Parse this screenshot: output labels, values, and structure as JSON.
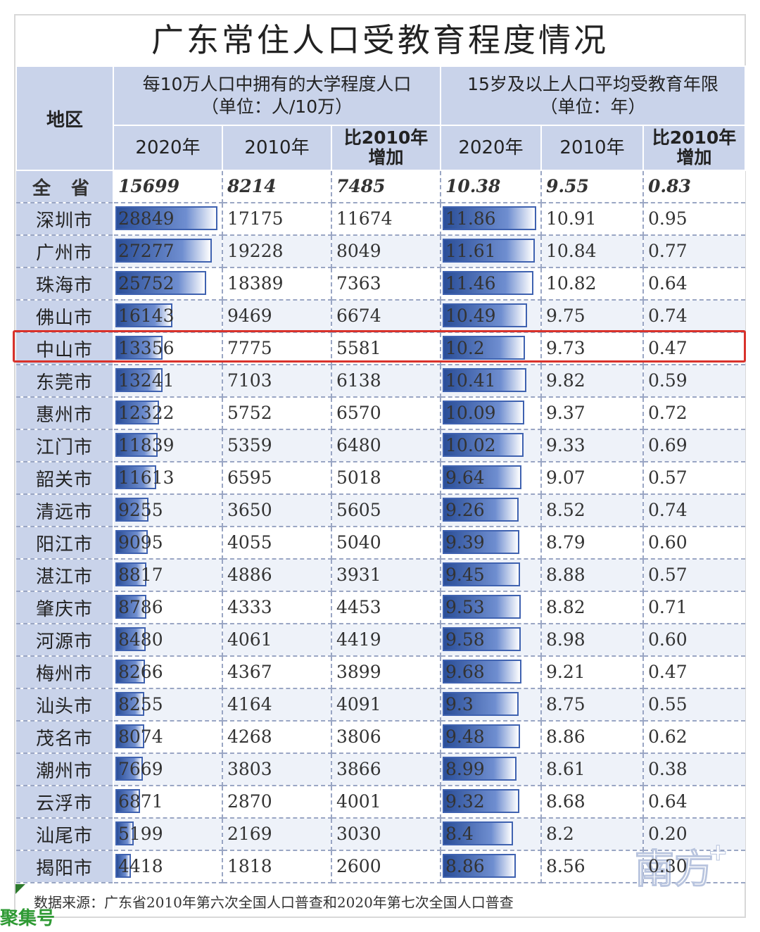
{
  "title": "广东常住人口受教育程度情况",
  "header": {
    "region": "地区",
    "group1": {
      "line1": "每10万人口中拥有的大学程度人口",
      "line2": "（单位：人/10万）"
    },
    "group2": {
      "line1": "15岁及以上人口平均受教育年限",
      "line2": "（单位：年）"
    },
    "y2020": "2020年",
    "y2010": "2010年",
    "inc_line1": "比2010年",
    "inc_line2": "增加"
  },
  "chart_data": {
    "type": "table",
    "title": "广东常住人口受教育程度情况",
    "columns": [
      "地区",
      "大学程度人口 2020年",
      "大学程度人口 2010年",
      "大学程度人口 比2010年增加",
      "平均受教育年限 2020年",
      "平均受教育年限 2010年",
      "平均受教育年限 比2010年增加"
    ],
    "total": {
      "region": "全 省",
      "uni2020": "15699",
      "uni2010": "8214",
      "uniInc": "7485",
      "edu2020": "10.38",
      "edu2010": "9.55",
      "eduInc": "0.83"
    },
    "rows": [
      {
        "region": "深圳市",
        "uni2020": "28849",
        "uni2010": "17175",
        "uniInc": "11674",
        "edu2020": "11.86",
        "edu2010": "10.91",
        "eduInc": "0.95"
      },
      {
        "region": "广州市",
        "uni2020": "27277",
        "uni2010": "19228",
        "uniInc": "8049",
        "edu2020": "11.61",
        "edu2010": "10.84",
        "eduInc": "0.77"
      },
      {
        "region": "珠海市",
        "uni2020": "25752",
        "uni2010": "18389",
        "uniInc": "7363",
        "edu2020": "11.46",
        "edu2010": "10.82",
        "eduInc": "0.64"
      },
      {
        "region": "佛山市",
        "uni2020": "16143",
        "uni2010": "9469",
        "uniInc": "6674",
        "edu2020": "10.49",
        "edu2010": "9.75",
        "eduInc": "0.74"
      },
      {
        "region": "中山市",
        "uni2020": "13356",
        "uni2010": "7775",
        "uniInc": "5581",
        "edu2020": "10.2",
        "edu2010": "9.73",
        "eduInc": "0.47"
      },
      {
        "region": "东莞市",
        "uni2020": "13241",
        "uni2010": "7103",
        "uniInc": "6138",
        "edu2020": "10.41",
        "edu2010": "9.82",
        "eduInc": "0.59"
      },
      {
        "region": "惠州市",
        "uni2020": "12322",
        "uni2010": "5752",
        "uniInc": "6570",
        "edu2020": "10.09",
        "edu2010": "9.37",
        "eduInc": "0.72"
      },
      {
        "region": "江门市",
        "uni2020": "11839",
        "uni2010": "5359",
        "uniInc": "6480",
        "edu2020": "10.02",
        "edu2010": "9.33",
        "eduInc": "0.69"
      },
      {
        "region": "韶关市",
        "uni2020": "11613",
        "uni2010": "6595",
        "uniInc": "5018",
        "edu2020": "9.64",
        "edu2010": "9.07",
        "eduInc": "0.57"
      },
      {
        "region": "清远市",
        "uni2020": "9255",
        "uni2010": "3650",
        "uniInc": "5605",
        "edu2020": "9.26",
        "edu2010": "8.52",
        "eduInc": "0.74"
      },
      {
        "region": "阳江市",
        "uni2020": "9095",
        "uni2010": "4055",
        "uniInc": "5040",
        "edu2020": "9.39",
        "edu2010": "8.79",
        "eduInc": "0.60"
      },
      {
        "region": "湛江市",
        "uni2020": "8817",
        "uni2010": "4886",
        "uniInc": "3931",
        "edu2020": "9.45",
        "edu2010": "8.88",
        "eduInc": "0.57"
      },
      {
        "region": "肇庆市",
        "uni2020": "8786",
        "uni2010": "4333",
        "uniInc": "4453",
        "edu2020": "9.53",
        "edu2010": "8.82",
        "eduInc": "0.71"
      },
      {
        "region": "河源市",
        "uni2020": "8480",
        "uni2010": "4061",
        "uniInc": "4419",
        "edu2020": "9.58",
        "edu2010": "8.98",
        "eduInc": "0.60"
      },
      {
        "region": "梅州市",
        "uni2020": "8266",
        "uni2010": "4367",
        "uniInc": "3899",
        "edu2020": "9.68",
        "edu2010": "9.21",
        "eduInc": "0.47"
      },
      {
        "region": "汕头市",
        "uni2020": "8255",
        "uni2010": "4164",
        "uniInc": "4091",
        "edu2020": "9.3",
        "edu2010": "8.75",
        "eduInc": "0.55"
      },
      {
        "region": "茂名市",
        "uni2020": "8074",
        "uni2010": "4268",
        "uniInc": "3806",
        "edu2020": "9.48",
        "edu2010": "8.86",
        "eduInc": "0.62"
      },
      {
        "region": "潮州市",
        "uni2020": "7669",
        "uni2010": "3803",
        "uniInc": "3866",
        "edu2020": "8.99",
        "edu2010": "8.61",
        "eduInc": "0.38"
      },
      {
        "region": "云浮市",
        "uni2020": "6871",
        "uni2010": "2870",
        "uniInc": "4001",
        "edu2020": "9.32",
        "edu2010": "8.68",
        "eduInc": "0.64"
      },
      {
        "region": "汕尾市",
        "uni2020": "5199",
        "uni2010": "2169",
        "uniInc": "3030",
        "edu2020": "8.4",
        "edu2010": "8.2",
        "eduInc": "0.20"
      },
      {
        "region": "揭阳市",
        "uni2020": "4418",
        "uni2010": "1818",
        "uniInc": "2600",
        "edu2020": "8.86",
        "edu2010": "8.56",
        "eduInc": "0.30"
      }
    ],
    "highlighted_region": "中山市",
    "bar_columns": [
      "uni2020",
      "edu2020"
    ],
    "bar_color": "#3f62b0",
    "highlight_color": "#d9322b"
  },
  "source": "数据来源：广东省2010年第六次全国人口普查和2020年第七次全国人口普查",
  "watermark_left": "聚集号",
  "watermark_right": "南方+"
}
